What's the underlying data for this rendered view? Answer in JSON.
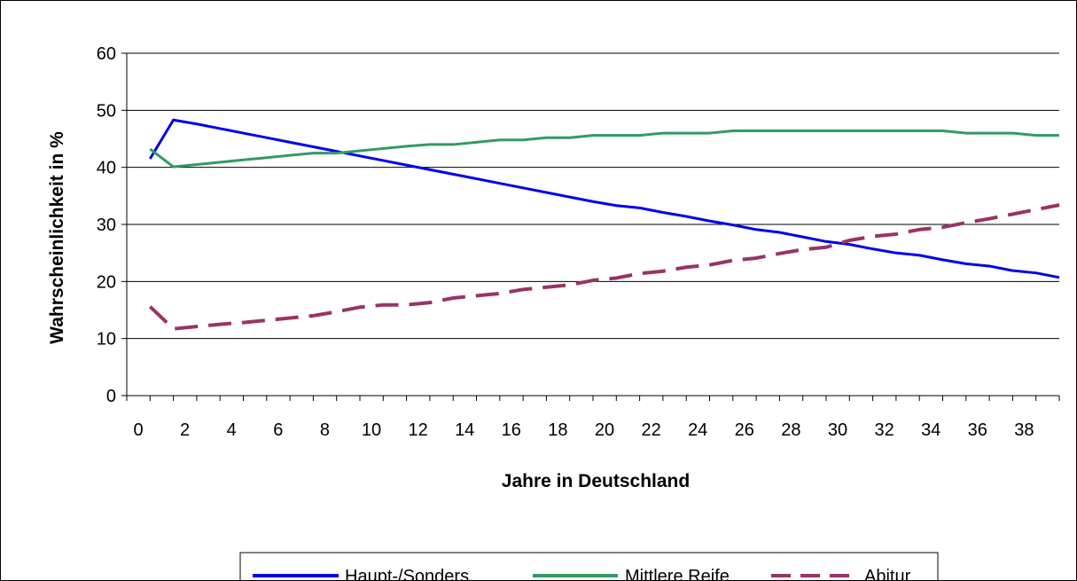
{
  "chart_data": {
    "type": "line",
    "title": "",
    "xlabel": "Jahre in Deutschland",
    "ylabel": "Wahrscheinlichkeit in %",
    "ylim": [
      0,
      60
    ],
    "yticks": [
      "0",
      "10",
      "20",
      "30",
      "40",
      "50",
      "60"
    ],
    "xticks": [
      "0",
      "2",
      "4",
      "6",
      "8",
      "10",
      "12",
      "14",
      "16",
      "18",
      "20",
      "22",
      "24",
      "26",
      "28",
      "30",
      "32",
      "34",
      "36",
      "38"
    ],
    "grid": "horizontal",
    "legend_position": "bottom",
    "x": [
      1,
      2,
      3,
      4,
      5,
      6,
      7,
      8,
      9,
      10,
      11,
      12,
      13,
      14,
      15,
      16,
      17,
      18,
      19,
      20,
      21,
      22,
      23,
      24,
      25,
      26,
      27,
      28,
      29,
      30,
      31,
      32,
      33,
      34,
      35,
      36,
      37,
      38,
      39,
      40
    ],
    "series": [
      {
        "name": "Haupt-/Sonders.",
        "color": "#0000ee",
        "style": "solid",
        "values": [
          41.5,
          48.3,
          47.6,
          46.8,
          46.0,
          45.2,
          44.4,
          43.6,
          42.8,
          42.0,
          41.2,
          40.4,
          39.6,
          38.8,
          38.0,
          37.2,
          36.4,
          35.6,
          34.8,
          34.0,
          33.3,
          32.9,
          32.1,
          31.4,
          30.6,
          29.9,
          29.1,
          28.6,
          27.8,
          27.0,
          26.5,
          25.7,
          25.0,
          24.6,
          23.8,
          23.1,
          22.7,
          21.9,
          21.5,
          20.7
        ]
      },
      {
        "name": "Mittlere Reife",
        "color": "#339966",
        "style": "solid",
        "values": [
          43.2,
          40.1,
          40.5,
          40.9,
          41.3,
          41.7,
          42.1,
          42.5,
          42.5,
          42.9,
          43.3,
          43.7,
          44.0,
          44.0,
          44.4,
          44.8,
          44.8,
          45.2,
          45.2,
          45.6,
          45.6,
          45.6,
          46.0,
          46.0,
          46.0,
          46.4,
          46.4,
          46.4,
          46.4,
          46.4,
          46.4,
          46.4,
          46.4,
          46.4,
          46.4,
          46.0,
          46.0,
          46.0,
          45.6,
          45.6
        ]
      },
      {
        "name": "Abitur",
        "color": "#993366",
        "style": "dashed",
        "values": [
          15.6,
          11.7,
          12.1,
          12.5,
          12.8,
          13.2,
          13.6,
          14.0,
          14.7,
          15.5,
          15.9,
          15.9,
          16.3,
          17.1,
          17.5,
          17.9,
          18.6,
          19.0,
          19.4,
          20.2,
          20.6,
          21.4,
          21.8,
          22.5,
          22.9,
          23.7,
          24.1,
          24.9,
          25.6,
          26.0,
          27.2,
          27.9,
          28.3,
          29.1,
          29.5,
          30.3,
          31.0,
          31.8,
          32.6,
          33.4
        ]
      }
    ]
  }
}
